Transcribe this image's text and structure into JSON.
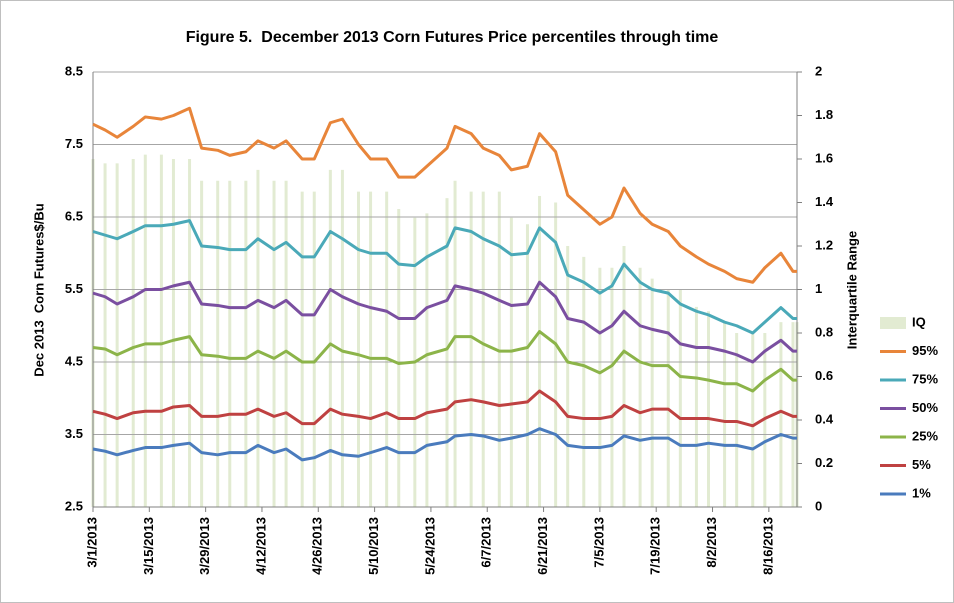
{
  "chart_data": {
    "type": "line",
    "title": "Figure 5.  December 2013 Corn Futures Price percentiles through time",
    "y_label": "Dec 2013  Corn Futures$/Bu",
    "y2_label": "Interquartile Range",
    "x": [
      "3/1/2013",
      "3/4/2013",
      "3/7/2013",
      "3/11/2013",
      "3/14/2013",
      "3/18/2013",
      "3/21/2013",
      "3/25/2013",
      "3/28/2013",
      "4/1/2013",
      "4/4/2013",
      "4/8/2013",
      "4/11/2013",
      "4/15/2013",
      "4/18/2013",
      "4/22/2013",
      "4/25/2013",
      "4/29/2013",
      "5/2/2013",
      "5/6/2013",
      "5/9/2013",
      "5/13/2013",
      "5/16/2013",
      "5/20/2013",
      "5/23/2013",
      "5/28/2013",
      "5/30/2013",
      "6/3/2013",
      "6/6/2013",
      "6/10/2013",
      "6/13/2013",
      "6/17/2013",
      "6/20/2013",
      "6/24/2013",
      "6/27/2013",
      "7/1/2013",
      "7/5/2013",
      "7/8/2013",
      "7/11/2013",
      "7/15/2013",
      "7/18/2013",
      "7/22/2013",
      "7/25/2013",
      "7/29/2013",
      "8/1/2013",
      "8/5/2013",
      "8/8/2013",
      "8/12/2013",
      "8/15/2013",
      "8/19/2013",
      "8/22/2013",
      "8/23/2013"
    ],
    "xlim": [
      "3/1/2013",
      "8/23/2013"
    ],
    "xticks": [
      "3/1/2013",
      "3/15/2013",
      "3/29/2013",
      "4/12/2013",
      "4/26/2013",
      "5/10/2013",
      "5/24/2013",
      "6/7/2013",
      "6/21/2013",
      "7/5/2013",
      "7/19/2013",
      "8/2/2013",
      "8/16/2013"
    ],
    "ylim": [
      2.5,
      8.5
    ],
    "yticks": [
      2.5,
      3.5,
      4.5,
      5.5,
      6.5,
      7.5,
      8.5
    ],
    "y2lim": [
      0,
      2
    ],
    "y2ticks": [
      0,
      0.2,
      0.4,
      0.6,
      0.8,
      1,
      1.2,
      1.4,
      1.6,
      1.8,
      2
    ],
    "grid": true,
    "legend": "right",
    "series": [
      {
        "name": "IQ",
        "color": "#e2ebd2",
        "type": "bar",
        "axis": "y2",
        "values": [
          1.6,
          1.58,
          1.58,
          1.6,
          1.62,
          1.62,
          1.6,
          1.6,
          1.5,
          1.5,
          1.5,
          1.5,
          1.55,
          1.5,
          1.5,
          1.45,
          1.45,
          1.55,
          1.55,
          1.45,
          1.45,
          1.45,
          1.37,
          1.33,
          1.35,
          1.42,
          1.5,
          1.45,
          1.45,
          1.45,
          1.33,
          1.3,
          1.43,
          1.4,
          1.2,
          1.15,
          1.1,
          1.1,
          1.2,
          1.1,
          1.05,
          1.0,
          1.0,
          0.92,
          0.9,
          0.85,
          0.8,
          0.8,
          0.8,
          0.85,
          0.85,
          0.85
        ]
      },
      {
        "name": "95%",
        "color": "#e8853a",
        "values": [
          7.78,
          7.7,
          7.6,
          7.75,
          7.88,
          7.85,
          7.9,
          8.0,
          7.45,
          7.42,
          7.35,
          7.4,
          7.55,
          7.45,
          7.55,
          7.3,
          7.3,
          7.8,
          7.85,
          7.5,
          7.3,
          7.3,
          7.05,
          7.05,
          7.2,
          7.45,
          7.75,
          7.65,
          7.45,
          7.35,
          7.15,
          7.2,
          7.65,
          7.4,
          6.8,
          6.6,
          6.4,
          6.5,
          6.9,
          6.55,
          6.4,
          6.3,
          6.1,
          5.95,
          5.85,
          5.75,
          5.65,
          5.6,
          5.8,
          6.0,
          5.75,
          5.75
        ]
      },
      {
        "name": "75%",
        "color": "#4aa9b8",
        "values": [
          6.3,
          6.25,
          6.2,
          6.3,
          6.38,
          6.38,
          6.4,
          6.45,
          6.1,
          6.08,
          6.05,
          6.05,
          6.2,
          6.05,
          6.15,
          5.95,
          5.95,
          6.3,
          6.2,
          6.05,
          6.0,
          6.0,
          5.85,
          5.83,
          5.95,
          6.1,
          6.35,
          6.3,
          6.2,
          6.1,
          5.98,
          6.0,
          6.35,
          6.15,
          5.7,
          5.6,
          5.45,
          5.55,
          5.85,
          5.6,
          5.5,
          5.45,
          5.3,
          5.2,
          5.15,
          5.05,
          5.0,
          4.9,
          5.05,
          5.25,
          5.1,
          5.1
        ]
      },
      {
        "name": "50%",
        "color": "#7a4fa0",
        "values": [
          5.45,
          5.4,
          5.3,
          5.4,
          5.5,
          5.5,
          5.55,
          5.6,
          5.3,
          5.28,
          5.25,
          5.25,
          5.35,
          5.25,
          5.35,
          5.15,
          5.15,
          5.5,
          5.4,
          5.3,
          5.25,
          5.2,
          5.1,
          5.1,
          5.25,
          5.35,
          5.55,
          5.5,
          5.45,
          5.35,
          5.28,
          5.3,
          5.6,
          5.4,
          5.1,
          5.05,
          4.9,
          5.0,
          5.2,
          5.0,
          4.95,
          4.9,
          4.75,
          4.7,
          4.7,
          4.65,
          4.6,
          4.5,
          4.65,
          4.8,
          4.65,
          4.65
        ]
      },
      {
        "name": "25%",
        "color": "#8cb449",
        "values": [
          4.7,
          4.68,
          4.6,
          4.7,
          4.75,
          4.75,
          4.8,
          4.85,
          4.6,
          4.58,
          4.55,
          4.55,
          4.65,
          4.55,
          4.65,
          4.5,
          4.5,
          4.75,
          4.65,
          4.6,
          4.55,
          4.55,
          4.48,
          4.5,
          4.6,
          4.68,
          4.85,
          4.85,
          4.75,
          4.65,
          4.65,
          4.7,
          4.92,
          4.75,
          4.5,
          4.45,
          4.35,
          4.45,
          4.65,
          4.5,
          4.45,
          4.45,
          4.3,
          4.28,
          4.25,
          4.2,
          4.2,
          4.1,
          4.25,
          4.4,
          4.25,
          4.25
        ]
      },
      {
        "name": "5%",
        "color": "#bf4141",
        "values": [
          3.82,
          3.78,
          3.72,
          3.8,
          3.82,
          3.82,
          3.88,
          3.9,
          3.75,
          3.75,
          3.78,
          3.78,
          3.85,
          3.75,
          3.8,
          3.65,
          3.65,
          3.85,
          3.78,
          3.75,
          3.72,
          3.8,
          3.72,
          3.72,
          3.8,
          3.85,
          3.95,
          3.98,
          3.95,
          3.9,
          3.92,
          3.95,
          4.1,
          3.95,
          3.75,
          3.72,
          3.72,
          3.75,
          3.9,
          3.8,
          3.85,
          3.85,
          3.72,
          3.72,
          3.72,
          3.68,
          3.68,
          3.62,
          3.72,
          3.82,
          3.75,
          3.75
        ]
      },
      {
        "name": "1%",
        "color": "#4a7bbd",
        "values": [
          3.3,
          3.27,
          3.22,
          3.28,
          3.32,
          3.32,
          3.35,
          3.38,
          3.25,
          3.22,
          3.25,
          3.25,
          3.35,
          3.25,
          3.3,
          3.15,
          3.18,
          3.28,
          3.22,
          3.2,
          3.25,
          3.32,
          3.25,
          3.25,
          3.35,
          3.4,
          3.48,
          3.5,
          3.48,
          3.42,
          3.45,
          3.5,
          3.58,
          3.5,
          3.35,
          3.32,
          3.32,
          3.35,
          3.48,
          3.42,
          3.45,
          3.45,
          3.35,
          3.35,
          3.38,
          3.35,
          3.35,
          3.3,
          3.4,
          3.5,
          3.45,
          3.45
        ]
      }
    ]
  }
}
